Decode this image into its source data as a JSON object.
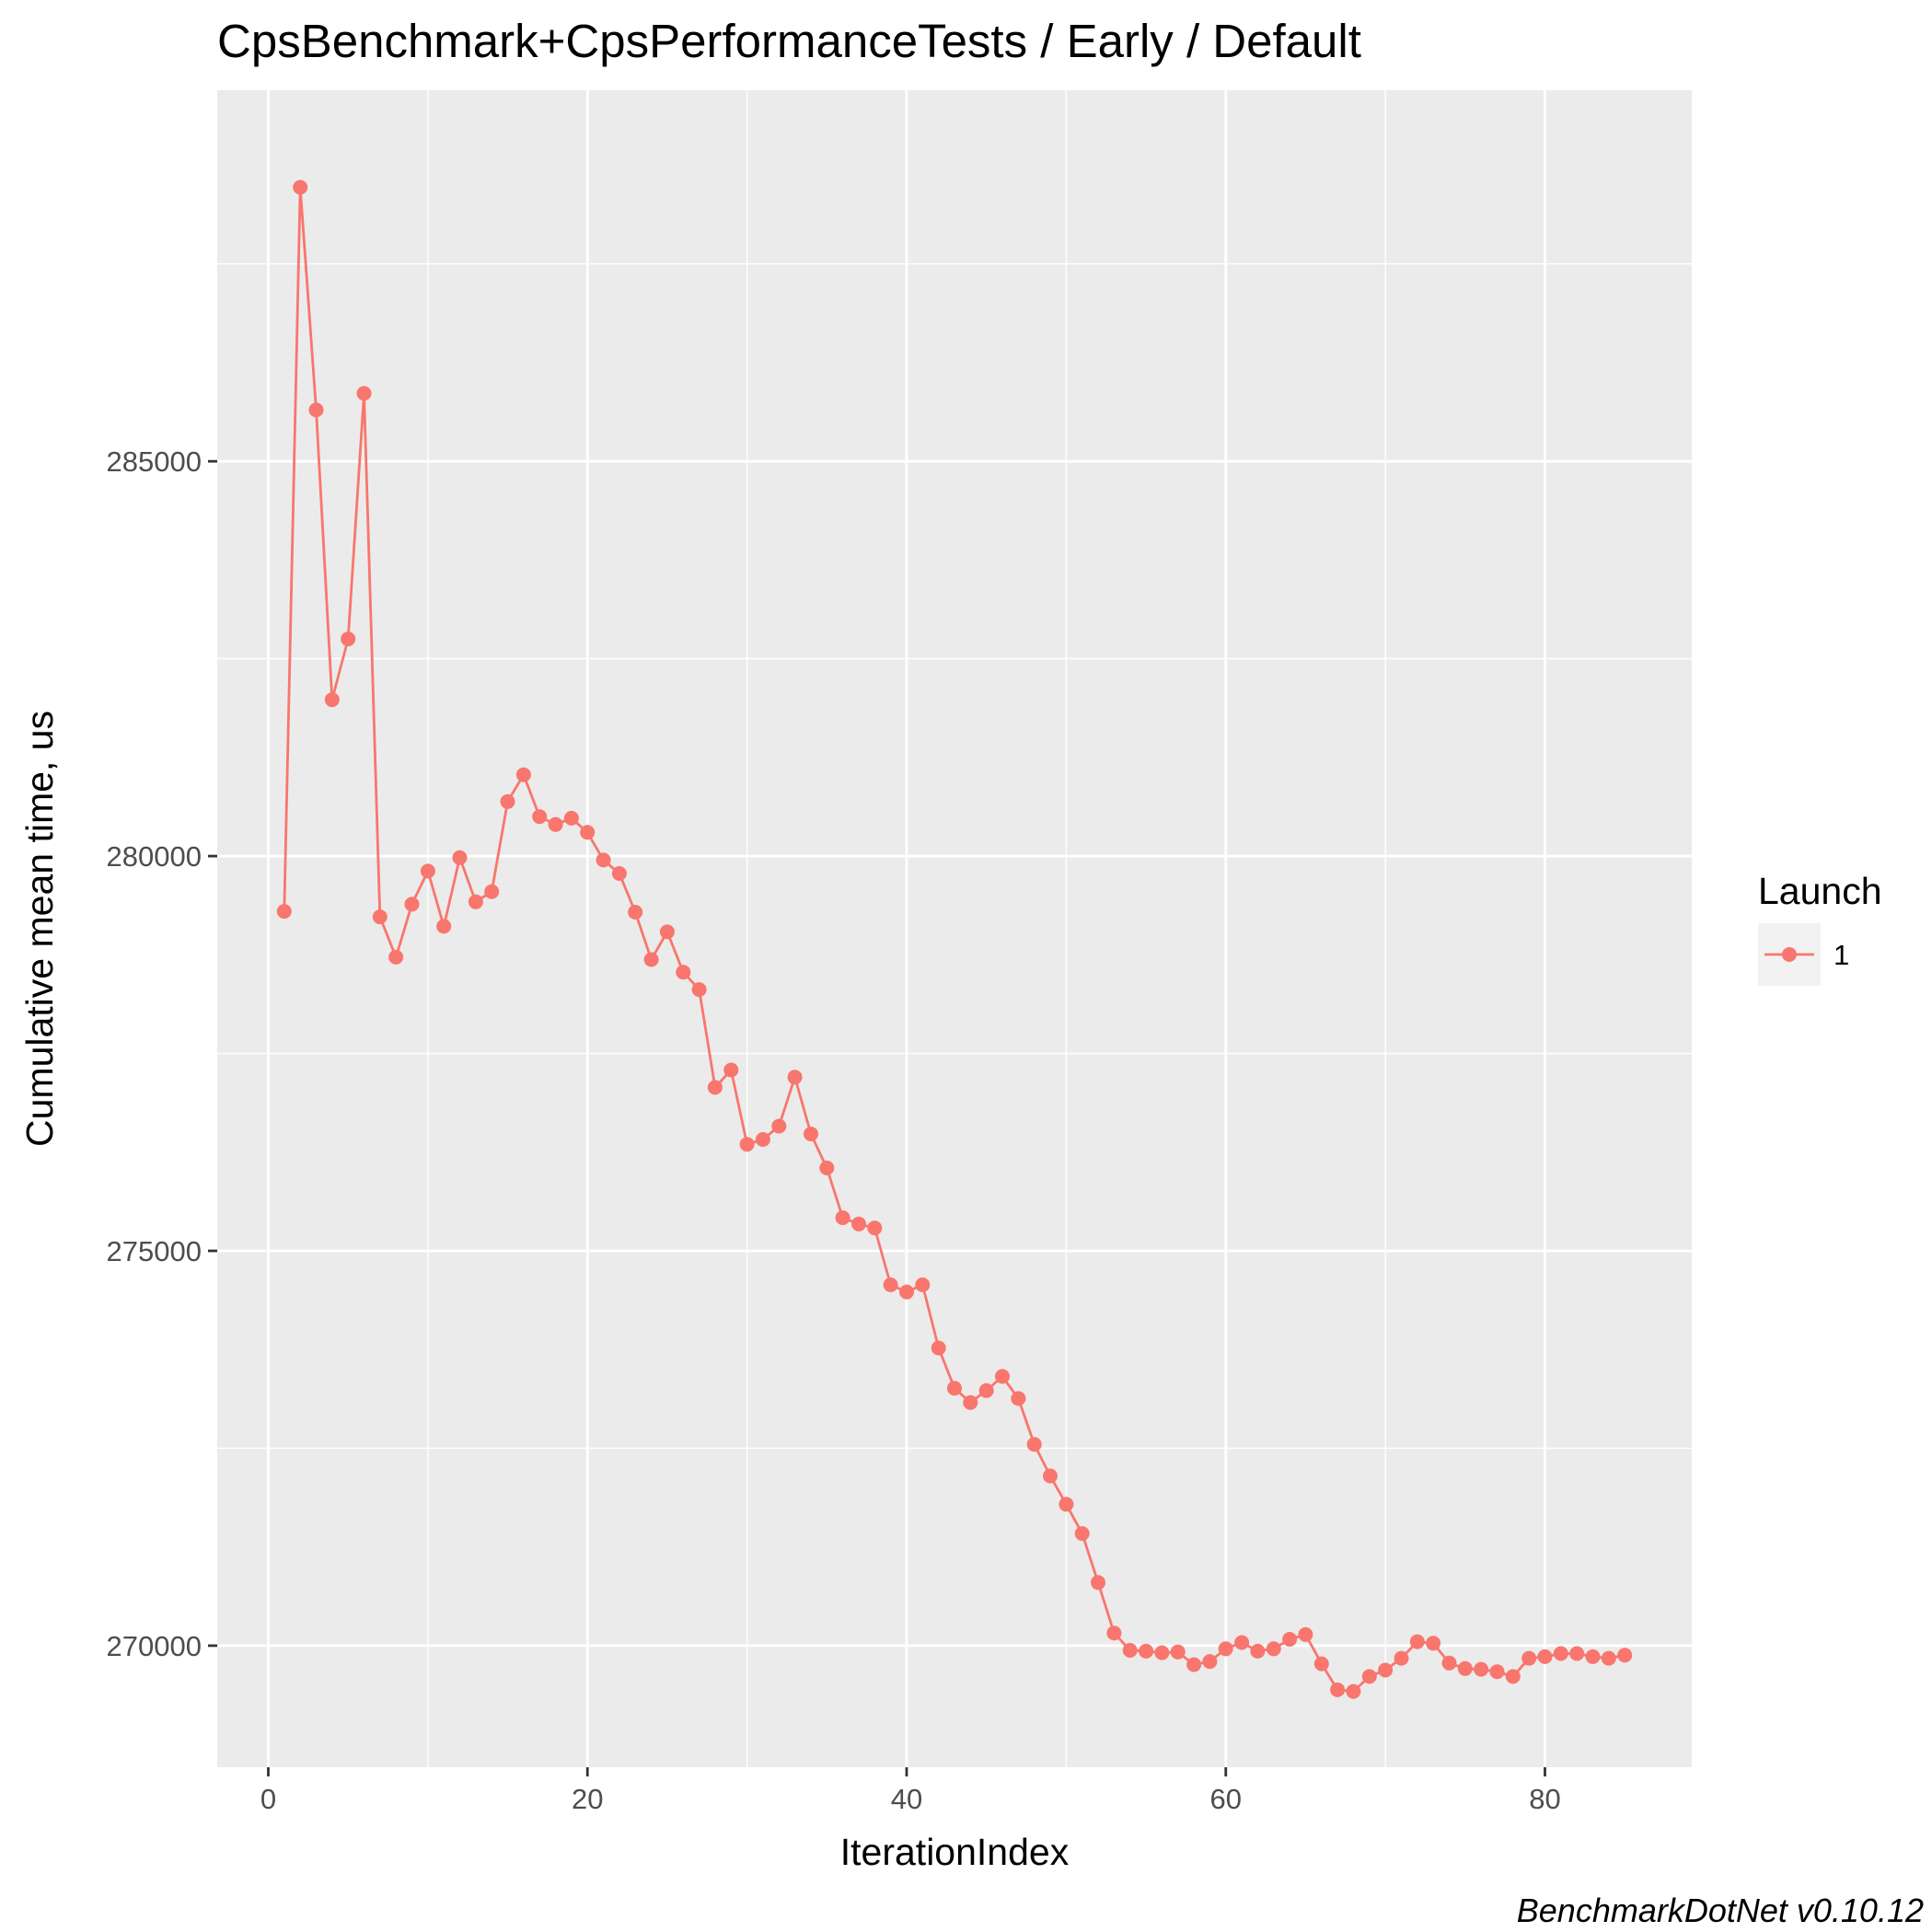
{
  "chart_data": {
    "type": "line",
    "title": "CpsBenchmark+CpsPerformanceTests / Early / Default",
    "xlabel": "IterationIndex",
    "ylabel": "Cumulative mean time, us",
    "caption": "BenchmarkDotNet v0.10.12",
    "xlim": [
      -3.2,
      89.2
    ],
    "ylim": [
      268460,
      289700
    ],
    "x_ticks": [
      0,
      20,
      40,
      60,
      80
    ],
    "x_tick_labels": [
      "0",
      "20",
      "40",
      "60",
      "80"
    ],
    "y_ticks": [
      270000,
      275000,
      280000,
      285000
    ],
    "y_tick_labels": [
      "270000",
      "275000",
      "280000",
      "285000"
    ],
    "grid": true,
    "legend": {
      "title": "Launch",
      "position": "right"
    },
    "series": [
      {
        "name": "1",
        "color": "#F8766D",
        "x": [
          1,
          2,
          3,
          4,
          5,
          6,
          7,
          8,
          9,
          10,
          11,
          12,
          13,
          14,
          15,
          16,
          17,
          18,
          19,
          20,
          21,
          22,
          23,
          24,
          25,
          26,
          27,
          28,
          29,
          30,
          31,
          32,
          33,
          34,
          35,
          36,
          37,
          38,
          39,
          40,
          41,
          42,
          43,
          44,
          45,
          46,
          47,
          48,
          49,
          50,
          51,
          52,
          53,
          54,
          55,
          56,
          57,
          58,
          59,
          60,
          61,
          62,
          63,
          64,
          65,
          66,
          67,
          68,
          69,
          70,
          71,
          72,
          73,
          74,
          75,
          76,
          77,
          78,
          79,
          80,
          81,
          82,
          83,
          84,
          85
        ],
        "y": [
          279300,
          288470,
          285650,
          281980,
          282750,
          285860,
          279230,
          278720,
          279390,
          279810,
          279110,
          279980,
          279420,
          279550,
          280690,
          281030,
          280500,
          280400,
          280480,
          280300,
          279950,
          279780,
          279290,
          278690,
          279040,
          278530,
          278310,
          277070,
          277290,
          276350,
          276410,
          276580,
          277200,
          276480,
          276050,
          275420,
          275340,
          275290,
          274570,
          274480,
          274570,
          273770,
          273260,
          273080,
          273230,
          273410,
          273130,
          272550,
          272150,
          271790,
          271420,
          270800,
          270160,
          269940,
          269930,
          269910,
          269920,
          269760,
          269800,
          269960,
          270040,
          269930,
          269960,
          270080,
          270140,
          269770,
          269440,
          269420,
          269610,
          269690,
          269840,
          270050,
          270030,
          269780,
          269710,
          269700,
          269670,
          269610,
          269840,
          269860,
          269900,
          269900,
          269860,
          269840,
          269880
        ]
      }
    ]
  }
}
